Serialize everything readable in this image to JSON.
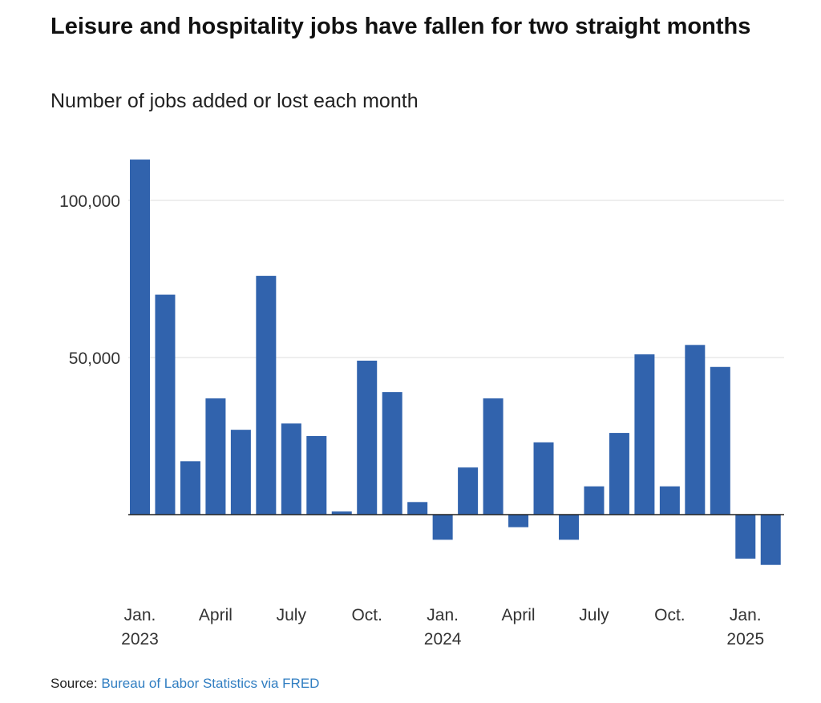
{
  "title": "Leisure and hospitality jobs have fallen for two straight months",
  "subtitle": "Number of jobs added or lost each month",
  "source": {
    "label": "Source:",
    "link_text": "Bureau of Labor Statistics via FRED"
  },
  "colors": {
    "bar": "#3163ad",
    "grid": "#dddddd",
    "axis": "#222222",
    "link": "#2f7dc1"
  },
  "chart_data": {
    "type": "bar",
    "categories": [
      "Jan. 2023",
      "Feb. 2023",
      "Mar. 2023",
      "Apr. 2023",
      "May 2023",
      "Jun. 2023",
      "Jul. 2023",
      "Aug. 2023",
      "Sep. 2023",
      "Oct. 2023",
      "Nov. 2023",
      "Dec. 2023",
      "Jan. 2024",
      "Feb. 2024",
      "Mar. 2024",
      "Apr. 2024",
      "May 2024",
      "Jun. 2024",
      "Jul. 2024",
      "Aug. 2024",
      "Sep. 2024",
      "Oct. 2024",
      "Nov. 2024",
      "Dec. 2024",
      "Jan. 2025",
      "Feb. 2025"
    ],
    "values": [
      113000,
      70000,
      17000,
      37000,
      27000,
      76000,
      29000,
      25000,
      1000,
      49000,
      39000,
      4000,
      -8000,
      15000,
      37000,
      -4000,
      23000,
      -8000,
      9000,
      26000,
      51000,
      9000,
      54000,
      47000,
      -14000,
      -16000
    ],
    "y_ticks": [
      {
        "value": 50000,
        "label": "50,000"
      },
      {
        "value": 100000,
        "label": "100,000"
      }
    ],
    "x_ticks": [
      {
        "index": 0,
        "line1": "Jan.",
        "line2": "2023"
      },
      {
        "index": 3,
        "line1": "April",
        "line2": ""
      },
      {
        "index": 6,
        "line1": "July",
        "line2": ""
      },
      {
        "index": 9,
        "line1": "Oct.",
        "line2": ""
      },
      {
        "index": 12,
        "line1": "Jan.",
        "line2": "2024"
      },
      {
        "index": 15,
        "line1": "April",
        "line2": ""
      },
      {
        "index": 18,
        "line1": "July",
        "line2": ""
      },
      {
        "index": 21,
        "line1": "Oct.",
        "line2": ""
      },
      {
        "index": 24,
        "line1": "Jan.",
        "line2": "2025"
      }
    ],
    "ylim": [
      -20000,
      115000
    ],
    "grid": true,
    "xlabel": "",
    "ylabel": ""
  }
}
